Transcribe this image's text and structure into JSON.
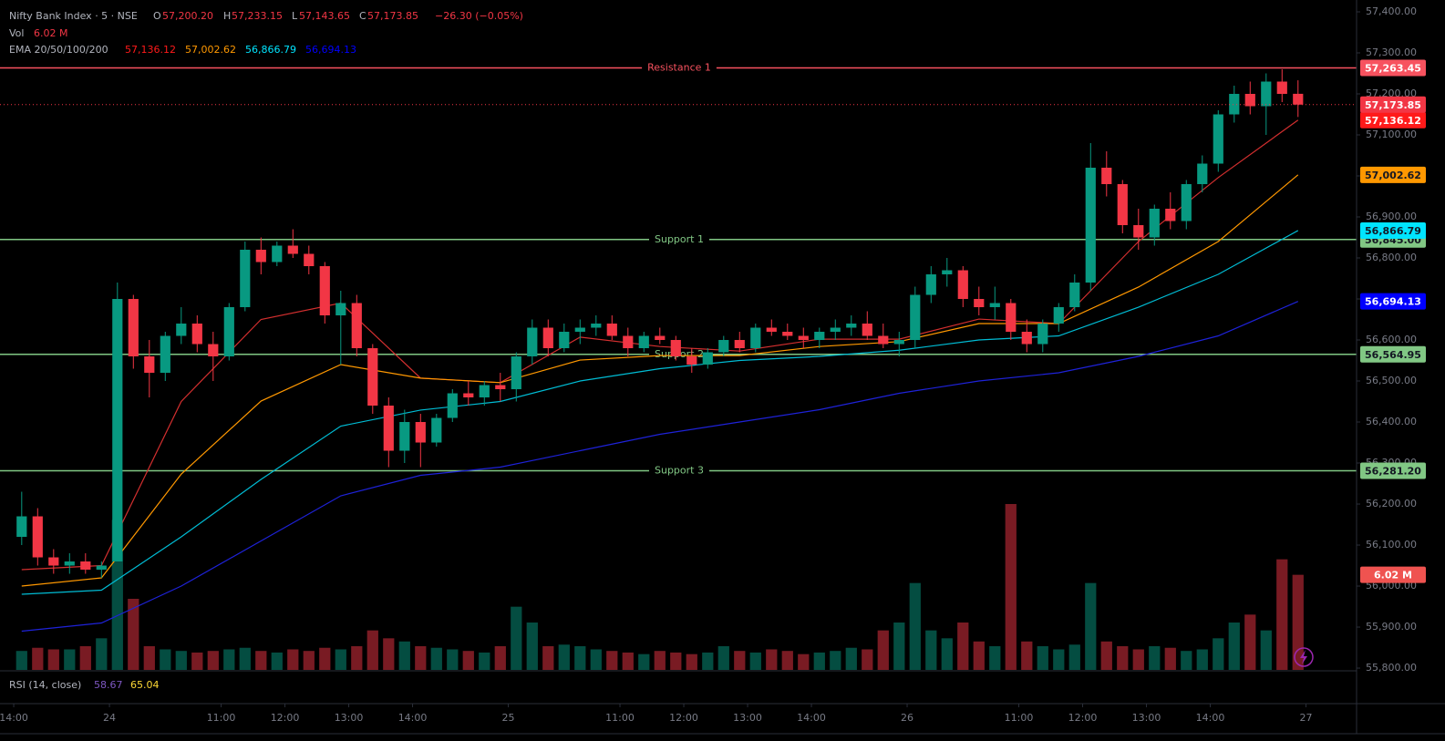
{
  "chart_data": {
    "type": "candlestick",
    "title": "Nifty Bank Index · 5 · NSE",
    "legend": [
      {
        "key": "O",
        "text": "57,200.20"
      },
      {
        "key": "H",
        "text": "57,233.15"
      },
      {
        "key": "L",
        "text": "57,143.65"
      },
      {
        "key": "C",
        "text": "57,173.85"
      }
    ],
    "change": "−26.30 (−0.05%)",
    "ema_title": "EMA 20/50/100/200",
    "up_color": "#089981",
    "down_color": "#f23645",
    "xlim": [
      -0.86,
      84.17
    ],
    "xticks": [
      {
        "value": 0,
        "label": "14:00"
      },
      {
        "value": 6,
        "label": "24"
      },
      {
        "value": 13,
        "label": "11:00"
      },
      {
        "value": 17,
        "label": "12:00"
      },
      {
        "value": 21,
        "label": "13:00"
      },
      {
        "value": 25,
        "label": "14:00"
      },
      {
        "value": 31,
        "label": "25"
      },
      {
        "value": 38,
        "label": "11:00"
      },
      {
        "value": 42,
        "label": "12:00"
      },
      {
        "value": 46,
        "label": "13:00"
      },
      {
        "value": 50,
        "label": "14:00"
      },
      {
        "value": 56,
        "label": "26"
      },
      {
        "value": 63,
        "label": "11:00"
      },
      {
        "value": 67,
        "label": "12:00"
      },
      {
        "value": 71,
        "label": "13:00"
      },
      {
        "value": 75,
        "label": "14:00"
      },
      {
        "value": 81,
        "label": "27"
      }
    ],
    "ylim": [
      55795.6,
      57428.9
    ],
    "yticks": [
      {
        "value": 57400,
        "label": "57,400.00"
      },
      {
        "value": 57300,
        "label": "57,300.00"
      },
      {
        "value": 57200,
        "label": "57,200.00"
      },
      {
        "value": 57100,
        "label": "57,100.00"
      },
      {
        "value": 57000,
        "label": "57,000.00"
      },
      {
        "value": 56900,
        "label": "56,900.00"
      },
      {
        "value": 56800,
        "label": "56,800.00"
      },
      {
        "value": 56700,
        "label": "56,700.00"
      },
      {
        "value": 56600,
        "label": "56,600.00"
      },
      {
        "value": 56500,
        "label": "56,500.00"
      },
      {
        "value": 56400,
        "label": "56,400.00"
      },
      {
        "value": 56300,
        "label": "56,300.00"
      },
      {
        "value": 56200,
        "label": "56,200.00"
      },
      {
        "value": 56100,
        "label": "56,100.00"
      },
      {
        "value": 56000,
        "label": "56,000.00"
      },
      {
        "value": 55900,
        "label": "55,900.00"
      },
      {
        "value": 55800,
        "label": "55,800.00"
      }
    ],
    "candles": {
      "open": [
        56120,
        56170,
        56070,
        56050,
        56060,
        56040,
        56060,
        56700,
        56560,
        56520,
        56610,
        56640,
        56590,
        56560,
        56680,
        56820,
        56790,
        56830,
        56810,
        56780,
        56660,
        56690,
        56580,
        56440,
        56330,
        56400,
        56350,
        56410,
        56470,
        56460,
        56490,
        56480,
        56560,
        56630,
        56580,
        56620,
        56630,
        56640,
        56610,
        56580,
        56610,
        56600,
        56560,
        56540,
        56570,
        56600,
        56580,
        56630,
        56620,
        56610,
        56600,
        56620,
        56630,
        56640,
        56610,
        56590,
        56600,
        56710,
        56760,
        56770,
        56700,
        56680,
        56690,
        56620,
        56590,
        56640,
        56680,
        56740,
        57020,
        56980,
        56880,
        56850,
        56920,
        56890,
        56980,
        57030,
        57150,
        57200,
        57170,
        57230,
        57200.2
      ],
      "high": [
        56230,
        56190,
        56090,
        56080,
        56080,
        56060,
        56740,
        56710,
        56600,
        56620,
        56680,
        56660,
        56620,
        56690,
        56840,
        56850,
        56840,
        56870,
        56830,
        56790,
        56720,
        56710,
        56590,
        56460,
        56430,
        56420,
        56420,
        56480,
        56500,
        56500,
        56520,
        56570,
        56650,
        56650,
        56640,
        56650,
        56660,
        56660,
        56630,
        56620,
        56630,
        56610,
        56580,
        56580,
        56610,
        56620,
        56640,
        56650,
        56640,
        56630,
        56630,
        56650,
        56660,
        56670,
        56640,
        56620,
        56730,
        56780,
        56800,
        56780,
        56730,
        56730,
        56700,
        56650,
        56650,
        56690,
        56760,
        57080,
        57060,
        56990,
        56920,
        56930,
        56960,
        56990,
        57050,
        57160,
        57220,
        57230,
        57250,
        57260,
        57233.15
      ],
      "low": [
        56100,
        56050,
        56030,
        56030,
        56030,
        56020,
        56470,
        56530,
        56460,
        56500,
        56590,
        56570,
        56500,
        56550,
        56670,
        56760,
        56780,
        56800,
        56760,
        56640,
        56540,
        56560,
        56420,
        56290,
        56300,
        56290,
        56340,
        56400,
        56440,
        56440,
        56450,
        56450,
        56540,
        56560,
        56570,
        56590,
        56610,
        56600,
        56560,
        56570,
        56590,
        56550,
        56520,
        56530,
        56560,
        56570,
        56570,
        56610,
        56600,
        56580,
        56580,
        56600,
        56610,
        56600,
        56580,
        56560,
        56580,
        56690,
        56730,
        56680,
        56660,
        56650,
        56600,
        56570,
        56570,
        56620,
        56670,
        56720,
        56950,
        56860,
        56820,
        56830,
        56870,
        56870,
        56960,
        57010,
        57130,
        57150,
        57100,
        57180,
        57143.65
      ],
      "close": [
        56170,
        56070,
        56050,
        56060,
        56040,
        56050,
        56700,
        56560,
        56520,
        56610,
        56640,
        56590,
        56560,
        56680,
        56820,
        56790,
        56830,
        56810,
        56780,
        56660,
        56690,
        56580,
        56440,
        56330,
        56400,
        56350,
        56410,
        56470,
        56460,
        56490,
        56480,
        56560,
        56630,
        56580,
        56620,
        56630,
        56640,
        56610,
        56580,
        56610,
        56600,
        56560,
        56540,
        56570,
        56600,
        56580,
        56630,
        56620,
        56610,
        56600,
        56620,
        56630,
        56640,
        56610,
        56590,
        56600,
        56710,
        56760,
        56770,
        56700,
        56680,
        56690,
        56620,
        56590,
        56640,
        56680,
        56740,
        57020,
        56980,
        56880,
        56850,
        56920,
        56890,
        56980,
        57030,
        57150,
        57200,
        57170,
        57230,
        57200,
        57173.85
      ],
      "last_price_label": "57,173.85",
      "last_color": "#f23645"
    },
    "volume": {
      "name": "Vol",
      "values": [
        1.2,
        1.4,
        1.3,
        1.3,
        1.5,
        2.0,
        9.5,
        4.5,
        1.5,
        1.3,
        1.2,
        1.1,
        1.2,
        1.3,
        1.4,
        1.2,
        1.1,
        1.3,
        1.2,
        1.4,
        1.3,
        1.5,
        2.5,
        2.0,
        1.8,
        1.5,
        1.4,
        1.3,
        1.2,
        1.1,
        1.5,
        4.0,
        3.0,
        1.5,
        1.6,
        1.5,
        1.3,
        1.2,
        1.1,
        1.0,
        1.2,
        1.1,
        1.0,
        1.1,
        1.5,
        1.2,
        1.1,
        1.3,
        1.2,
        1.0,
        1.1,
        1.2,
        1.4,
        1.3,
        2.5,
        3.0,
        5.5,
        2.5,
        2.0,
        3.0,
        1.8,
        1.5,
        10.5,
        1.8,
        1.5,
        1.3,
        1.6,
        5.5,
        1.8,
        1.5,
        1.3,
        1.5,
        1.4,
        1.2,
        1.3,
        2.0,
        3.0,
        3.5,
        2.5,
        7.0,
        6.02
      ],
      "ylim": [
        0,
        42.4
      ],
      "last_label": "6.02 M",
      "badge_color": "#ef5350"
    },
    "emas": [
      {
        "color": "#d32f2f",
        "badge_color": "#ff1a1a",
        "text_color": "#ffffff",
        "value_label": "57,136.12",
        "x": [
          0,
          5,
          10,
          15,
          20,
          25,
          30,
          35,
          40,
          45,
          50,
          55,
          60,
          65,
          70,
          75,
          80
        ],
        "values": [
          56040,
          56050,
          56450,
          56650,
          56690,
          56507,
          56496,
          56607,
          56584,
          56573,
          56602,
          56602,
          56651,
          56640,
          56840,
          56996,
          57136.12
        ]
      },
      {
        "color": "#ff9800",
        "badge_color": "#ff9800",
        "text_color": "#131722",
        "value_label": "57,002.62",
        "x": [
          0,
          5,
          10,
          15,
          20,
          25,
          30,
          35,
          40,
          45,
          50,
          55,
          60,
          65,
          70,
          75,
          80
        ],
        "values": [
          56000,
          56020,
          56273,
          56451,
          56540,
          56507,
          56496,
          56551,
          56562,
          56562,
          56584,
          56596,
          56640,
          56640,
          56729,
          56840,
          57002.62
        ]
      },
      {
        "color": "#00bcd4",
        "badge_color": "#00e5ff",
        "text_color": "#131722",
        "value_label": "56,866.79",
        "x": [
          0,
          5,
          10,
          15,
          20,
          25,
          30,
          35,
          40,
          45,
          50,
          55,
          60,
          65,
          70,
          75,
          80
        ],
        "values": [
          55980,
          55990,
          56120,
          56260,
          56390,
          56429,
          56450,
          56500,
          56530,
          56550,
          56560,
          56575,
          56600,
          56610,
          56680,
          56760,
          56866.79
        ]
      },
      {
        "color": "#1e22d8",
        "badge_color": "#0000ff",
        "text_color": "#ffffff",
        "value_label": "56,694.13",
        "x": [
          0,
          5,
          10,
          15,
          20,
          25,
          30,
          35,
          40,
          45,
          50,
          55,
          60,
          65,
          70,
          75,
          80
        ],
        "values": [
          55890,
          55910,
          56000,
          56110,
          56220,
          56270,
          56290,
          56330,
          56370,
          56400,
          56430,
          56470,
          56500,
          56520,
          56560,
          56610,
          56694.13
        ]
      }
    ],
    "levels": [
      {
        "name": "Resistance 1",
        "value": 57263.45,
        "value_label": "57,263.45",
        "color": "#f7525f",
        "text_color": "#ffffff"
      },
      {
        "name": "Support 1",
        "value": 56845.0,
        "value_label": "56,845.00",
        "color": "#81c784",
        "text_color": "#131722"
      },
      {
        "name": "Support 2",
        "value": 56564.95,
        "value_label": "56,564.95",
        "color": "#81c784",
        "text_color": "#131722"
      },
      {
        "name": "Support 3",
        "value": 56281.2,
        "value_label": "56,281.20",
        "color": "#81c784",
        "text_color": "#131722"
      }
    ],
    "rsi": {
      "title": "RSI (14, close)",
      "values": [
        {
          "text": "58.67",
          "color": "#7e57c2"
        },
        {
          "text": "65.04",
          "color": "#fdd835"
        }
      ]
    }
  }
}
